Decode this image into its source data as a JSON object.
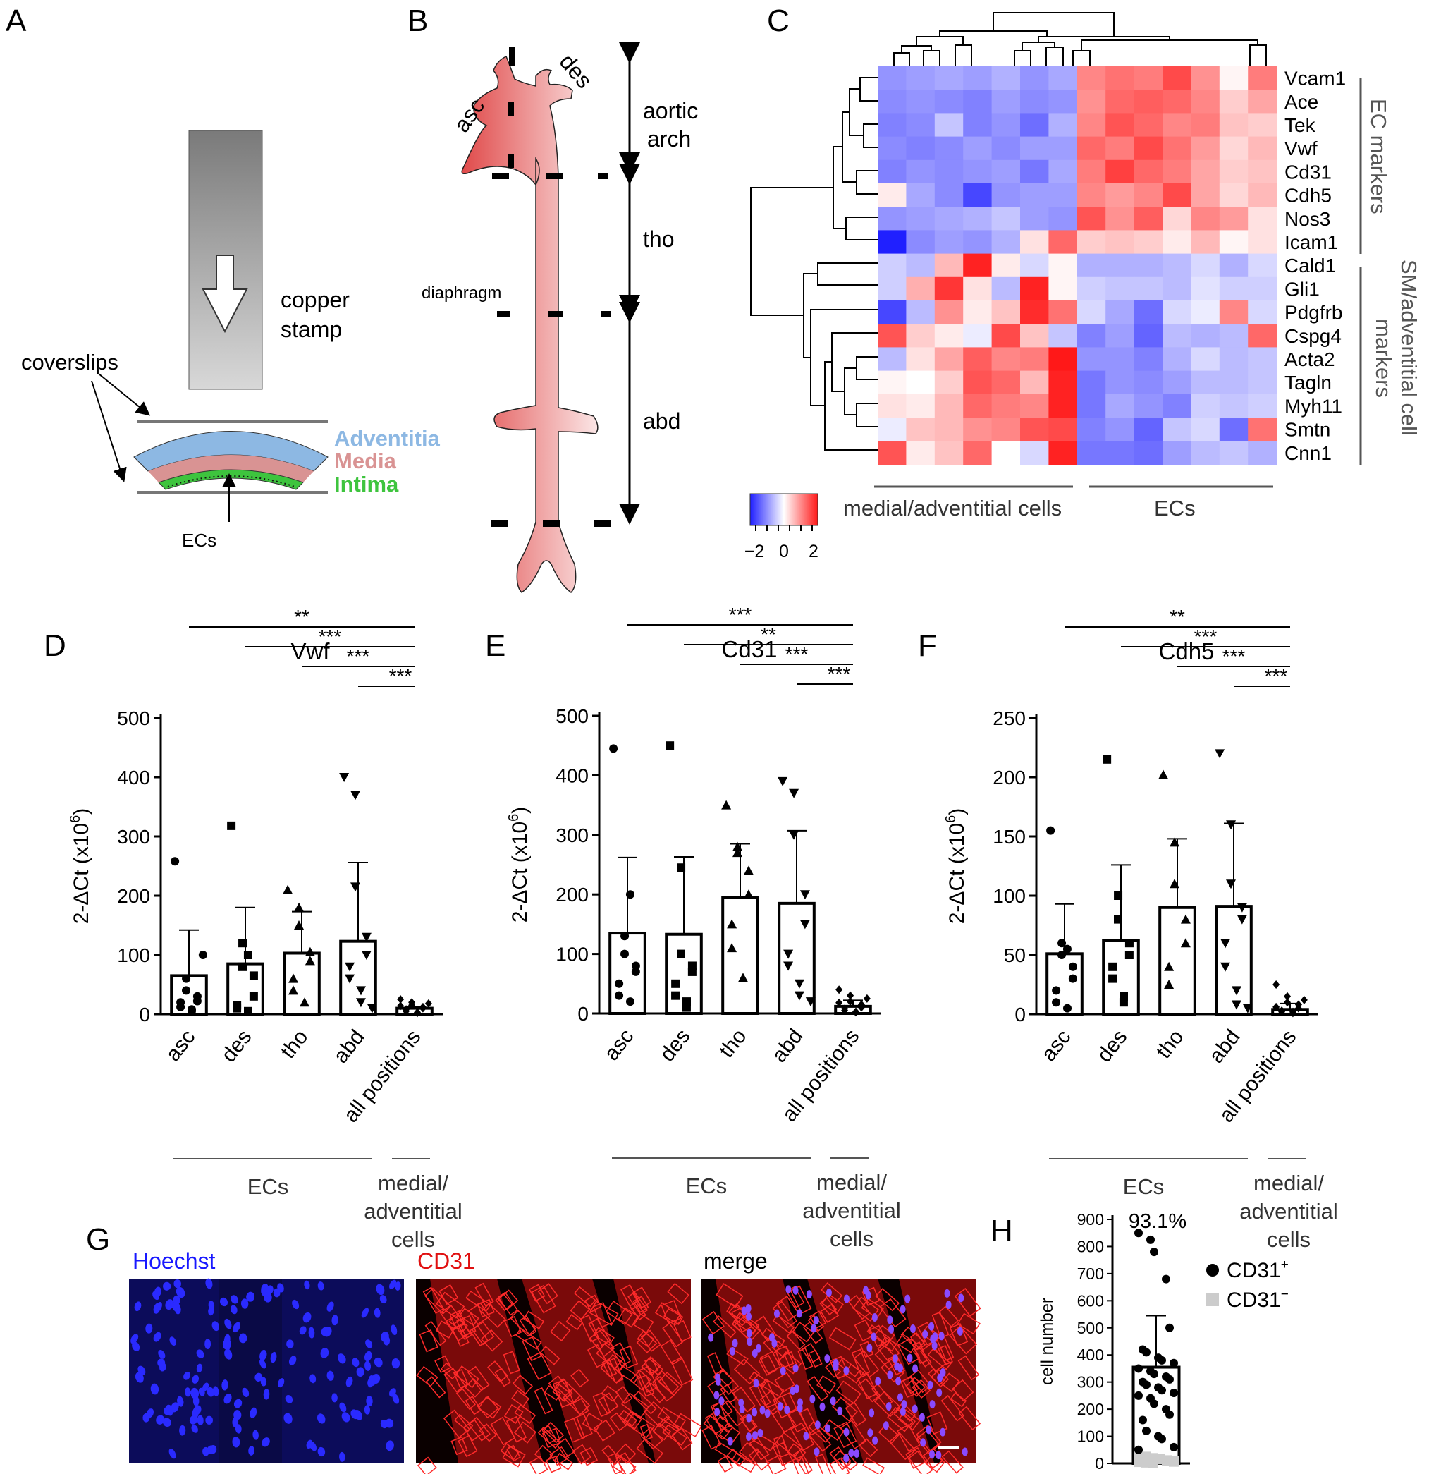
{
  "panel_letters": {
    "A": "A",
    "B": "B",
    "C": "C",
    "D": "D",
    "E": "E",
    "F": "F",
    "G": "G",
    "H": "H"
  },
  "panelA": {
    "stamp_label_1": "copper",
    "stamp_label_2": "stamp",
    "coverslips": "coverslips",
    "layers": [
      {
        "name": "Adventitia",
        "color": "#8db8e3"
      },
      {
        "name": "Media",
        "color": "#d99393"
      },
      {
        "name": "Intima",
        "color": "#3ec43e"
      }
    ],
    "ecs": "ECs"
  },
  "panelB": {
    "asc": "asc",
    "des": "des",
    "aortic_1": "aortic",
    "aortic_2": "arch",
    "tho": "tho",
    "diaphragm": "diaphragm",
    "abd": "abd"
  },
  "panelC": {
    "type": "heatmap",
    "genes": [
      "Vcam1",
      "Ace",
      "Tek",
      "Vwf",
      "Cd31",
      "Cdh5",
      "Nos3",
      "Icam1",
      "Cald1",
      "Gli1",
      "Pdgfrb",
      "Cspg4",
      "Acta2",
      "Tagln",
      "Myh11",
      "Smtn",
      "Cnn1"
    ],
    "matrix": [
      [
        -1.1,
        -1.0,
        -0.9,
        -1.0,
        -0.8,
        -1.1,
        -0.9,
        1.2,
        1.4,
        1.3,
        1.8,
        1.1,
        0.1,
        1.3
      ],
      [
        -1.2,
        -1.1,
        -1.2,
        -1.3,
        -1.0,
        -1.2,
        -1.1,
        1.1,
        1.5,
        1.6,
        1.5,
        1.2,
        0.5,
        0.9
      ],
      [
        -1.3,
        -1.2,
        -0.6,
        -1.3,
        -1.1,
        -1.5,
        -0.8,
        1.2,
        1.7,
        1.5,
        1.2,
        1.3,
        0.6,
        0.5
      ],
      [
        -1.2,
        -1.3,
        -1.2,
        -1.0,
        -1.2,
        -1.0,
        -1.0,
        1.5,
        1.3,
        1.8,
        1.4,
        1.0,
        0.4,
        0.7
      ],
      [
        -1.3,
        -1.1,
        -1.2,
        -1.1,
        -1.0,
        -1.4,
        -0.9,
        1.3,
        1.9,
        1.5,
        1.3,
        0.9,
        0.5,
        0.6
      ],
      [
        0.2,
        -0.9,
        -1.2,
        -1.9,
        -1.1,
        -1.0,
        -1.0,
        1.2,
        1.0,
        1.2,
        1.8,
        0.9,
        0.4,
        0.7
      ],
      [
        -1.1,
        -1.0,
        -0.9,
        -0.8,
        -0.6,
        -1.0,
        -1.1,
        1.7,
        1.1,
        1.6,
        0.4,
        1.2,
        1.0,
        0.3
      ],
      [
        -2.4,
        -1.2,
        -1.0,
        -1.1,
        -0.8,
        0.3,
        1.5,
        0.5,
        0.6,
        0.5,
        0.2,
        0.7,
        0.1,
        0.3
      ],
      [
        -0.5,
        -0.7,
        0.7,
        2.2,
        0.2,
        -0.4,
        0.1,
        -0.8,
        -0.8,
        -0.8,
        -0.7,
        -0.4,
        -0.8,
        -0.4
      ],
      [
        -0.5,
        0.8,
        2.0,
        0.3,
        -0.7,
        2.2,
        0.1,
        -0.5,
        -0.6,
        -0.6,
        -0.7,
        -0.3,
        -0.5,
        -0.5
      ],
      [
        -1.9,
        -0.7,
        1.1,
        0.2,
        0.6,
        2.1,
        1.4,
        -0.4,
        -0.9,
        -1.5,
        -0.4,
        -0.2,
        1.2,
        -0.4
      ],
      [
        1.7,
        0.5,
        0.2,
        -0.2,
        1.8,
        0.6,
        -0.6,
        -1.3,
        -1.0,
        -1.6,
        -0.7,
        -0.8,
        -0.7,
        1.5
      ],
      [
        -0.7,
        0.3,
        0.9,
        1.6,
        1.2,
        1.3,
        2.3,
        -1.1,
        -1.1,
        -1.3,
        -0.8,
        -0.4,
        -0.7,
        -0.6
      ],
      [
        0.1,
        0.0,
        0.5,
        1.7,
        1.5,
        0.7,
        2.2,
        -1.4,
        -1.1,
        -1.2,
        -1.0,
        -0.7,
        -0.7,
        -0.6
      ],
      [
        0.3,
        0.2,
        0.7,
        1.5,
        1.3,
        1.2,
        2.2,
        -1.4,
        -0.9,
        -1.1,
        -1.3,
        -0.5,
        -0.6,
        -0.5
      ],
      [
        -0.2,
        0.6,
        0.7,
        1.1,
        1.2,
        1.7,
        1.8,
        -1.3,
        -1.1,
        -1.6,
        -0.6,
        -0.4,
        -1.5,
        1.4
      ],
      [
        1.7,
        0.2,
        0.6,
        1.5,
        0.0,
        -0.4,
        2.2,
        -1.4,
        -1.4,
        -1.5,
        -1.0,
        -0.7,
        -0.6,
        -0.8
      ]
    ],
    "group_right_1": "EC markers",
    "group_right_2a": "SM/adventitial cell",
    "group_right_2b": "markers",
    "col_group_1": "medial/adventitial cells",
    "col_group_2": "ECs",
    "scale_ticks": [
      "−2",
      "0",
      "2"
    ]
  },
  "chart_data": [
    {
      "type": "bar",
      "title": "Vwf",
      "ylabel": "2-ΔCt (x10",
      "ylabel_sup": "6",
      "ylabel_end": ")",
      "ylim": [
        0,
        500
      ],
      "yticks": [
        "0",
        "100",
        "200",
        "300",
        "400",
        "500"
      ],
      "categories": [
        "asc",
        "des",
        "tho",
        "abd",
        "all positions"
      ],
      "values": [
        65,
        85,
        103,
        123,
        10
      ],
      "errors": [
        77,
        95,
        70,
        133,
        3
      ],
      "points": [
        [
          258,
          60,
          40,
          30,
          22,
          20,
          12,
          8,
          5,
          100
        ],
        [
          318,
          120,
          80,
          65,
          30,
          15,
          10,
          5,
          100
        ],
        [
          210,
          180,
          150,
          105,
          90,
          60,
          40,
          20
        ],
        [
          400,
          370,
          215,
          130,
          100,
          80,
          60,
          40,
          20,
          10
        ],
        [
          25,
          20,
          15,
          12,
          10,
          8,
          5,
          3,
          2,
          18,
          14
        ]
      ],
      "markers": [
        "circle",
        "square",
        "triangle-up",
        "triangle-down",
        "diamond"
      ],
      "significance": [
        {
          "from": 3,
          "label": "***"
        },
        {
          "from": 2,
          "label": "***"
        },
        {
          "from": 1,
          "label": "***"
        },
        {
          "from": 0,
          "label": "**"
        }
      ],
      "group_label_1": "ECs",
      "group_label_2": [
        "medial/",
        "adventitial",
        "cells"
      ]
    },
    {
      "type": "bar",
      "title": "Cd31",
      "ylabel": "2-ΔCt (x10",
      "ylabel_sup": "6",
      "ylabel_end": ")",
      "ylim": [
        0,
        500
      ],
      "yticks": [
        "0",
        "100",
        "200",
        "300",
        "400",
        "500"
      ],
      "categories": [
        "asc",
        "des",
        "tho",
        "abd",
        "all positions"
      ],
      "values": [
        135,
        133,
        195,
        185,
        12
      ],
      "errors": [
        127,
        130,
        90,
        122,
        10
      ],
      "points": [
        [
          445,
          130,
          100,
          80,
          70,
          50,
          30,
          20,
          200
        ],
        [
          450,
          245,
          100,
          80,
          70,
          50,
          30,
          20,
          10
        ],
        [
          350,
          280,
          270,
          240,
          200,
          150,
          110,
          60
        ],
        [
          390,
          370,
          300,
          200,
          150,
          100,
          80,
          50,
          30,
          20
        ],
        [
          40,
          30,
          20,
          15,
          10,
          8,
          5,
          3,
          2,
          25,
          18
        ]
      ],
      "markers": [
        "circle",
        "square",
        "triangle-up",
        "triangle-down",
        "diamond"
      ],
      "significance": [
        {
          "from": 3,
          "label": "***"
        },
        {
          "from": 2,
          "label": "***"
        },
        {
          "from": 1,
          "label": "**"
        },
        {
          "from": 0,
          "label": "***"
        }
      ],
      "group_label_1": "ECs",
      "group_label_2": [
        "medial/",
        "adventitial",
        "cells"
      ]
    },
    {
      "type": "bar",
      "title": "Cdh5",
      "ylabel": "2-ΔCt (x10",
      "ylabel_sup": "6",
      "ylabel_end": ")",
      "ylim": [
        0,
        250
      ],
      "yticks": [
        "0",
        "50",
        "100",
        "150",
        "200",
        "250"
      ],
      "categories": [
        "asc",
        "des",
        "tho",
        "abd",
        "all positions"
      ],
      "values": [
        51,
        62,
        90,
        91,
        4
      ],
      "errors": [
        42,
        64,
        58,
        70,
        5
      ],
      "points": [
        [
          155,
          60,
          50,
          40,
          30,
          20,
          10,
          5,
          55
        ],
        [
          215,
          100,
          80,
          60,
          50,
          40,
          30,
          15,
          10
        ],
        [
          202,
          145,
          110,
          80,
          60,
          40,
          25
        ],
        [
          220,
          160,
          110,
          90,
          80,
          60,
          40,
          20,
          8,
          5
        ],
        [
          25,
          15,
          10,
          8,
          5,
          3,
          2,
          2,
          1,
          12,
          6
        ]
      ],
      "markers": [
        "circle",
        "square",
        "triangle-up",
        "triangle-down",
        "diamond"
      ],
      "significance": [
        {
          "from": 3,
          "label": "***"
        },
        {
          "from": 2,
          "label": "***"
        },
        {
          "from": 1,
          "label": "***"
        },
        {
          "from": 0,
          "label": "**"
        }
      ],
      "group_label_1": "ECs",
      "group_label_2": [
        "medial/",
        "adventitial",
        "cells"
      ]
    },
    {
      "type": "bar",
      "ylabel": "cell number",
      "ylim": [
        0,
        900
      ],
      "yticks": [
        "0",
        "100",
        "200",
        "300",
        "400",
        "500",
        "600",
        "700",
        "800",
        "900"
      ],
      "annotation": "93.1%",
      "values": [
        355
      ],
      "errors": [
        190
      ],
      "points_pos": [
        850,
        825,
        780,
        680,
        500,
        420,
        410,
        390,
        380,
        370,
        350,
        340,
        330,
        320,
        310,
        300,
        290,
        280,
        270,
        260,
        250,
        240,
        220,
        200,
        180,
        160,
        120,
        100,
        90,
        60,
        50
      ],
      "points_neg": [
        30,
        25,
        20,
        15,
        10,
        8,
        5,
        3,
        2,
        18,
        12,
        6
      ],
      "legend": [
        {
          "name": "CD31",
          "sup": "+",
          "color": "#000000"
        },
        {
          "name": "CD31",
          "sup": "−",
          "color": "#cccccc"
        }
      ]
    }
  ],
  "panelG": {
    "labels": [
      "Hoechst",
      "CD31",
      "merge"
    ],
    "colors": [
      "#1818ff",
      "#e01010",
      "#000000"
    ]
  }
}
